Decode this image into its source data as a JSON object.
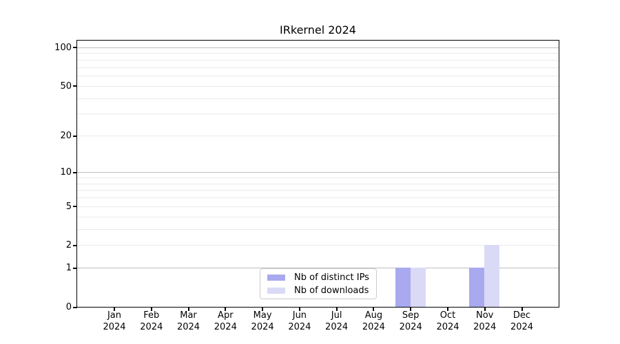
{
  "title": "IRkernel 2024",
  "legend": {
    "items": [
      {
        "label": "Nb of distinct IPs",
        "color": "#a9a9ef"
      },
      {
        "label": "Nb of downloads",
        "color": "#dadaf7"
      }
    ]
  },
  "colors": {
    "bar_distinct_ips": "#a9a9ef",
    "bar_downloads": "#dadaf7",
    "major_gridline": "#bdbdbd",
    "minor_gridline": "#e9e9e9",
    "axis_frame": "#000000",
    "background": "#ffffff",
    "legend_border": "#cccccc"
  },
  "chart_data": {
    "type": "bar",
    "title": "IRkernel 2024",
    "categories": [
      "Jan 2024",
      "Feb 2024",
      "Mar 2024",
      "Apr 2024",
      "May 2024",
      "Jun 2024",
      "Jul 2024",
      "Aug 2024",
      "Sep 2024",
      "Oct 2024",
      "Nov 2024",
      "Dec 2024"
    ],
    "month_labels": [
      "Jan",
      "Feb",
      "Mar",
      "Apr",
      "May",
      "Jun",
      "Jul",
      "Aug",
      "Sep",
      "Oct",
      "Nov",
      "Dec"
    ],
    "year_label": "2024",
    "series": [
      {
        "name": "Nb of distinct IPs",
        "color": "#a9a9ef",
        "values": [
          0,
          0,
          0,
          0,
          0,
          0,
          0,
          0,
          1,
          0,
          1,
          0
        ]
      },
      {
        "name": "Nb of downloads",
        "color": "#dadaf7",
        "values": [
          0,
          0,
          0,
          0,
          0,
          0,
          0,
          0,
          1,
          0,
          2,
          0
        ]
      }
    ],
    "xlabel": "",
    "ylabel": "",
    "yscale": "log1p",
    "ylim": [
      0,
      113
    ],
    "y_tick_labels": [
      "0",
      "1",
      "2",
      "5",
      "10",
      "20",
      "50",
      "100"
    ],
    "y_tick_values": [
      0,
      1,
      2,
      5,
      10,
      20,
      50,
      100
    ],
    "y_major_gridlines": [
      1,
      10,
      100
    ],
    "y_minor_gridlines": [
      2,
      3,
      4,
      5,
      6,
      7,
      8,
      9,
      20,
      30,
      40,
      50,
      60,
      70,
      80,
      90
    ],
    "grid": "horizontal",
    "legend_position": "inside-bottom-center"
  }
}
